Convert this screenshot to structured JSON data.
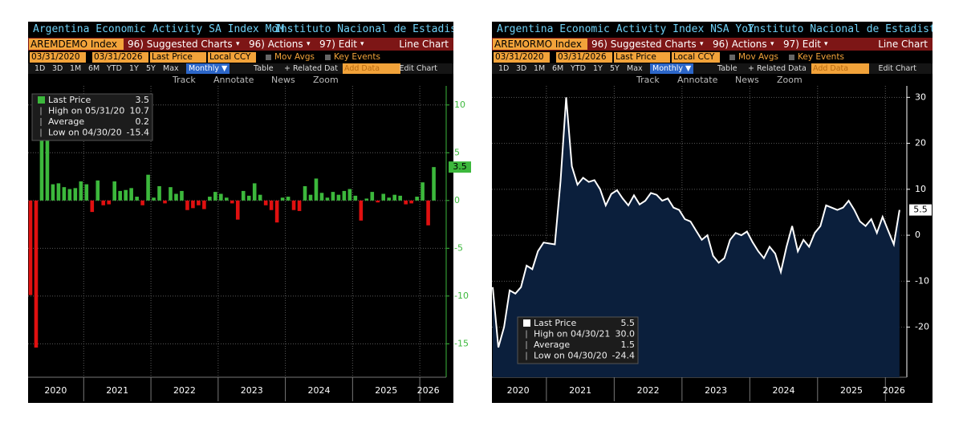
{
  "ui": [
    {
      "title": "Argentina Economic Activity SA Index MoM",
      "source": "Instituto Nacional de Estadist...",
      "ticker": "AREMDEMO Index",
      "menu": [
        "96) Suggested Charts",
        "96) Actions",
        "97) Edit"
      ],
      "chart_kind": "Line Chart",
      "start_date": "03/31/2020",
      "end_date": "03/31/2026",
      "field": "Last Price",
      "currency": "Local CCY",
      "options": [
        "Mov Avgs",
        "Key Events"
      ],
      "periods": [
        "1D",
        "3D",
        "1M",
        "6M",
        "YTD",
        "1Y",
        "5Y",
        "Max"
      ],
      "frequency": "Monthly ▼",
      "table": "Table",
      "related": "+ Related Dat",
      "add_data": "Add Data",
      "edit_chart": "Edit Chart",
      "tools": [
        "Track",
        "Annotate",
        "News",
        "Zoom"
      ]
    },
    {
      "title": "Argentina Economic Activity Index NSA YoY",
      "source": "Instituto Nacional de Estadist...",
      "ticker": "AREMORMO Index",
      "menu": [
        "96) Suggested Charts",
        "96) Actions",
        "97) Edit"
      ],
      "chart_kind": "Line Chart",
      "start_date": "03/31/2020",
      "end_date": "03/31/2026",
      "field": "Last Price",
      "currency": "Local CCY",
      "options": [
        "Mov Avgs",
        "Key Events"
      ],
      "periods": [
        "1D",
        "3D",
        "1M",
        "6M",
        "YTD",
        "1Y",
        "5Y",
        "Max"
      ],
      "frequency": "Monthly ▼",
      "table": "Table",
      "related": "+ Related Data",
      "add_data": "Add Data",
      "edit_chart": "Edit Chart",
      "tools": [
        "Track",
        "Annotate",
        "News",
        "Zoom"
      ]
    }
  ],
  "chart_data": [
    {
      "type": "bar",
      "series": [
        {
          "name": "Last Price",
          "color": "#3cb83c",
          "negative_color": "#e01010",
          "values": [
            -9.9,
            -15.4,
            10.7,
            6.3,
            1.7,
            1.8,
            1.4,
            1.2,
            1.3,
            2.0,
            1.7,
            -1.2,
            2.1,
            -0.5,
            -0.4,
            2.0,
            1.0,
            1.1,
            1.3,
            0.4,
            -0.5,
            2.7,
            0.3,
            1.5,
            -0.3,
            1.4,
            0.7,
            1.0,
            -1.0,
            -0.8,
            -0.5,
            -0.9,
            0.4,
            0.9,
            0.7,
            0.3,
            -0.3,
            -2.0,
            1.0,
            0.5,
            1.8,
            0.6,
            -0.5,
            -1.0,
            -2.3,
            0.3,
            0.4,
            -1.0,
            -1.1,
            1.5,
            0.6,
            2.3,
            0.8,
            0.3,
            0.9,
            0.6,
            1.0,
            1.2,
            0.5,
            -2.1,
            0.2,
            0.9,
            -0.2,
            0.7,
            0.3,
            0.6,
            0.5,
            -0.4,
            -0.3,
            0.4,
            1.9,
            -2.6,
            3.5
          ]
        }
      ],
      "x_labels": [
        "2020",
        "2021",
        "2022",
        "2023",
        "2024",
        "2025",
        "2026"
      ],
      "ylim": [
        -18.5,
        12.0
      ],
      "yticks": [
        10,
        5,
        0,
        -5,
        -10,
        -15
      ],
      "grid": true,
      "axis_color": "#3cb83c",
      "legend_position": "upper left",
      "stats": [
        {
          "label": "High on 05/31/20",
          "value": 10.7
        },
        {
          "label": "Average",
          "value": 0.2
        },
        {
          "label": "Low on 04/30/20",
          "value": -15.4
        }
      ]
    },
    {
      "type": "area",
      "series": [
        {
          "name": "Last Price",
          "color": "#ffffff",
          "fill": "#0b1f3c",
          "values": [
            -11.3,
            -24.4,
            -20.0,
            -12.0,
            -12.7,
            -11.3,
            -6.6,
            -7.4,
            -3.5,
            -1.6,
            -1.8,
            -2.0,
            11.8,
            30.0,
            15.0,
            11.0,
            12.5,
            11.6,
            12.0,
            10.0,
            6.5,
            9.0,
            9.8,
            8.0,
            6.5,
            8.7,
            6.7,
            7.5,
            9.2,
            8.8,
            7.5,
            8.0,
            6.0,
            5.5,
            3.5,
            3.0,
            1.0,
            -1.0,
            0.0,
            -4.5,
            -6.0,
            -5.0,
            -1.0,
            0.5,
            0.0,
            0.8,
            -1.5,
            -3.5,
            -5.0,
            -2.5,
            -4.0,
            -8.0,
            -2.5,
            2.0,
            -3.5,
            -1.0,
            -2.5,
            0.5,
            2.0,
            6.5,
            6.0,
            5.5,
            6.0,
            7.5,
            5.5,
            3.0,
            2.0,
            3.5,
            0.5,
            4.0,
            1.0,
            -2.0,
            5.5
          ]
        }
      ],
      "x_labels": [
        "2020",
        "2021",
        "2022",
        "2023",
        "2024",
        "2025",
        "2026"
      ],
      "ylim": [
        -30.9,
        32.5
      ],
      "yticks": [
        30,
        20,
        10,
        0,
        -10,
        -20
      ],
      "grid": true,
      "axis_color": "#ffffff",
      "legend_position": "lower left",
      "stats": [
        {
          "label": "High on 04/30/21",
          "value": 30,
          "value_label": "30.0"
        },
        {
          "label": "Average",
          "value": 1.5
        },
        {
          "label": "Low on 04/30/20",
          "value": -24.4
        }
      ]
    }
  ]
}
